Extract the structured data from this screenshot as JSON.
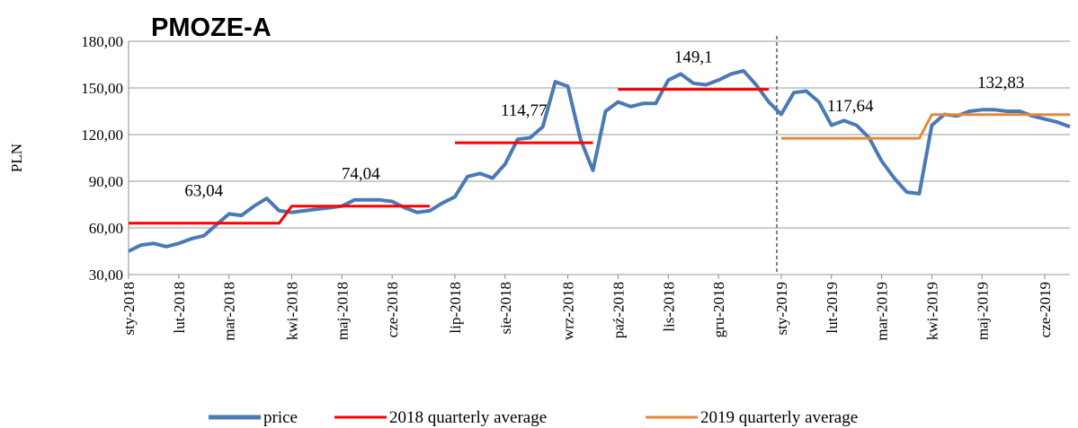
{
  "chart_data": {
    "type": "line",
    "title": "PMOZE-A",
    "y_label": "PLN",
    "categories": [
      "sty-2018",
      null,
      null,
      null,
      "lut-2018",
      null,
      null,
      null,
      "mar-2018",
      null,
      null,
      null,
      null,
      "kwi-2018",
      null,
      null,
      null,
      "maj-2018",
      null,
      null,
      null,
      "cze-2018",
      null,
      null,
      null,
      null,
      "lip-2018",
      null,
      null,
      null,
      "sie-2018",
      null,
      null,
      null,
      null,
      "wrz-2018",
      null,
      null,
      null,
      "paź-2018",
      null,
      null,
      null,
      "lis-2018",
      null,
      null,
      null,
      "gru-2018",
      null,
      null,
      null,
      null,
      "sty-2019",
      null,
      null,
      null,
      "lut-2019",
      null,
      null,
      null,
      "mar-2019",
      null,
      null,
      null,
      "kwi-2019",
      null,
      null,
      null,
      "maj-2019",
      null,
      null,
      null,
      null,
      "cze-2019",
      null,
      null
    ],
    "series": [
      {
        "name": "price",
        "color": "#4a7ab5",
        "values": [
          45,
          49,
          50,
          48,
          50,
          53,
          55,
          62,
          69,
          68,
          74,
          79,
          71,
          70,
          71,
          72,
          73,
          74,
          78,
          78,
          78,
          77,
          73,
          70,
          71,
          76,
          80,
          93,
          95,
          92,
          101,
          117,
          118,
          125,
          154,
          151,
          117,
          97,
          135,
          141,
          138,
          140,
          140,
          155,
          159,
          153,
          152,
          155,
          159,
          161,
          152,
          141,
          133,
          147,
          148,
          141,
          126,
          129,
          126,
          118,
          103,
          92,
          83,
          82,
          126,
          133,
          132,
          135,
          136,
          136,
          135,
          135,
          132,
          130,
          128,
          125
        ]
      },
      {
        "name": "2018 quarterly average",
        "color": "#ff0000",
        "values": [
          63.04,
          63.04,
          63.04,
          63.04,
          63.04,
          63.04,
          63.04,
          63.04,
          63.04,
          63.04,
          63.04,
          63.04,
          63.04,
          74.04,
          74.04,
          74.04,
          74.04,
          74.04,
          74.04,
          74.04,
          74.04,
          74.04,
          74.04,
          74.04,
          74.04,
          null,
          114.77,
          114.77,
          114.77,
          114.77,
          114.77,
          114.77,
          114.77,
          114.77,
          114.77,
          114.77,
          114.77,
          114.77,
          null,
          149.1,
          149.1,
          149.1,
          149.1,
          149.1,
          149.1,
          149.1,
          149.1,
          149.1,
          149.1,
          149.1,
          149.1,
          149.1,
          null,
          null,
          null,
          null,
          null,
          null,
          null,
          null,
          null,
          null,
          null,
          null,
          null,
          null,
          null,
          null,
          null,
          null,
          null,
          null,
          null,
          null,
          null,
          null
        ]
      },
      {
        "name": "2019 quarterly average",
        "color": "#e8873a",
        "values": [
          null,
          null,
          null,
          null,
          null,
          null,
          null,
          null,
          null,
          null,
          null,
          null,
          null,
          null,
          null,
          null,
          null,
          null,
          null,
          null,
          null,
          null,
          null,
          null,
          null,
          null,
          null,
          null,
          null,
          null,
          null,
          null,
          null,
          null,
          null,
          null,
          null,
          null,
          null,
          null,
          null,
          null,
          null,
          null,
          null,
          null,
          null,
          null,
          null,
          null,
          null,
          null,
          117.64,
          117.64,
          117.64,
          117.64,
          117.64,
          117.64,
          117.64,
          117.64,
          117.64,
          117.64,
          117.64,
          117.64,
          132.83,
          132.83,
          132.83,
          132.83,
          132.83,
          132.83,
          132.83,
          132.83,
          132.83,
          132.83,
          132.83,
          132.83
        ]
      }
    ],
    "annotations": [
      "63,04",
      "74,04",
      "114,77",
      "149,1",
      "117,64",
      "132,83"
    ],
    "ylim": [
      30,
      180
    ],
    "yticks": [
      {
        "value": 30,
        "label": "30,00"
      },
      {
        "value": 60,
        "label": "60,00"
      },
      {
        "value": 90,
        "label": "90,00"
      },
      {
        "value": 120,
        "label": "120,00"
      },
      {
        "value": 150,
        "label": "150,00"
      },
      {
        "value": 180,
        "label": "180,00"
      }
    ],
    "grid": true
  }
}
